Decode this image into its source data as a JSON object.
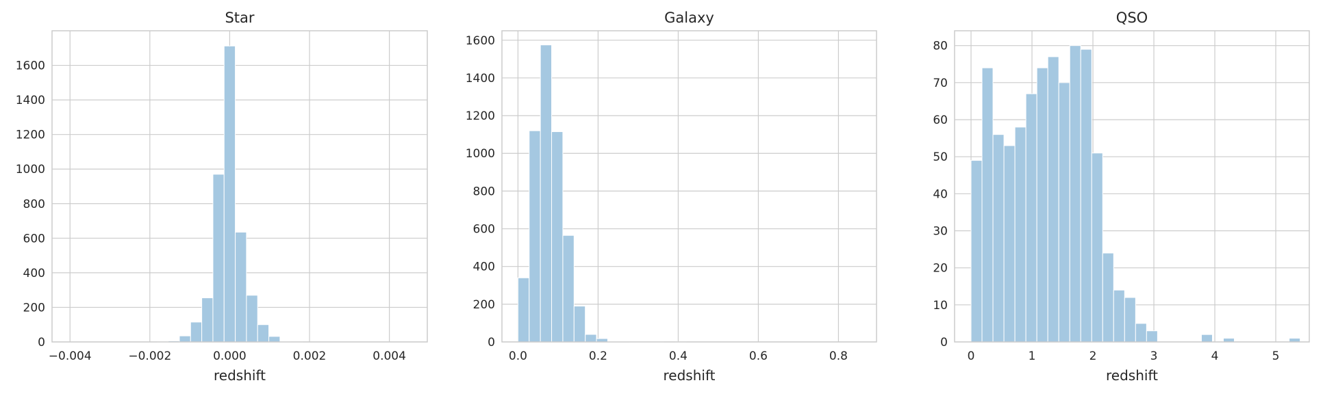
{
  "chart_data": [
    {
      "type": "bar",
      "title": "Star",
      "xlabel": "redshift",
      "ylabel": "",
      "xlim": [
        -0.00445,
        0.00495
      ],
      "ylim": [
        0,
        1800
      ],
      "xticks": [
        -0.004,
        -0.002,
        0.0,
        0.002,
        0.004
      ],
      "xtick_labels": [
        "−0.004",
        "−0.002",
        "0.000",
        "0.002",
        "0.004"
      ],
      "yticks": [
        0,
        200,
        400,
        600,
        800,
        1000,
        1200,
        1400,
        1600
      ],
      "ytick_labels": [
        "0",
        "200",
        "400",
        "600",
        "800",
        "1000",
        "1200",
        "1400",
        "1600"
      ],
      "grid": true,
      "bins": [
        {
          "x0": -0.00406,
          "x1": -0.00378,
          "count": 0
        },
        {
          "x0": -0.00378,
          "x1": -0.0035,
          "count": 0
        },
        {
          "x0": -0.0035,
          "x1": -0.00322,
          "count": 0
        },
        {
          "x0": -0.00322,
          "x1": -0.00294,
          "count": 0
        },
        {
          "x0": -0.00294,
          "x1": -0.00266,
          "count": 0
        },
        {
          "x0": -0.00266,
          "x1": -0.00238,
          "count": 0
        },
        {
          "x0": -0.00238,
          "x1": -0.0021,
          "count": 0
        },
        {
          "x0": -0.0021,
          "x1": -0.00182,
          "count": 0
        },
        {
          "x0": -0.00182,
          "x1": -0.00154,
          "count": 1
        },
        {
          "x0": -0.00154,
          "x1": -0.00126,
          "count": 6
        },
        {
          "x0": -0.00126,
          "x1": -0.00098,
          "count": 35
        },
        {
          "x0": -0.00098,
          "x1": -0.0007,
          "count": 115
        },
        {
          "x0": -0.0007,
          "x1": -0.00042,
          "count": 255
        },
        {
          "x0": -0.00042,
          "x1": -0.00014,
          "count": 970
        },
        {
          "x0": -0.00014,
          "x1": 0.00014,
          "count": 1712
        },
        {
          "x0": 0.00014,
          "x1": 0.00042,
          "count": 635
        },
        {
          "x0": 0.00042,
          "x1": 0.0007,
          "count": 270
        },
        {
          "x0": 0.0007,
          "x1": 0.00098,
          "count": 100
        },
        {
          "x0": 0.00098,
          "x1": 0.00126,
          "count": 32
        },
        {
          "x0": 0.00126,
          "x1": 0.00154,
          "count": 2
        },
        {
          "x0": 0.00154,
          "x1": 0.00182,
          "count": 1
        },
        {
          "x0": 0.00182,
          "x1": 0.0021,
          "count": 0
        },
        {
          "x0": 0.0021,
          "x1": 0.00238,
          "count": 0
        },
        {
          "x0": 0.00238,
          "x1": 0.00266,
          "count": 0
        },
        {
          "x0": 0.00266,
          "x1": 0.00294,
          "count": 0
        },
        {
          "x0": 0.00294,
          "x1": 0.00322,
          "count": 0
        },
        {
          "x0": 0.00322,
          "x1": 0.0035,
          "count": 0
        },
        {
          "x0": 0.0035,
          "x1": 0.00378,
          "count": 0
        },
        {
          "x0": 0.00378,
          "x1": 0.00406,
          "count": 0
        },
        {
          "x0": 0.00406,
          "x1": 0.00434,
          "count": 0
        },
        {
          "x0": 0.00434,
          "x1": 0.00462,
          "count": 0
        }
      ]
    },
    {
      "type": "bar",
      "title": "Galaxy",
      "xlabel": "redshift",
      "ylabel": "",
      "xlim": [
        -0.04,
        0.895
      ],
      "ylim": [
        0,
        1650
      ],
      "xticks": [
        0.0,
        0.2,
        0.4,
        0.6,
        0.8
      ],
      "xtick_labels": [
        "0.0",
        "0.2",
        "0.4",
        "0.6",
        "0.8"
      ],
      "yticks": [
        0,
        200,
        400,
        600,
        800,
        1000,
        1200,
        1400,
        1600
      ],
      "ytick_labels": [
        "0",
        "200",
        "400",
        "600",
        "800",
        "1000",
        "1200",
        "1400",
        "1600"
      ],
      "grid": true,
      "bins": [
        {
          "x0": 0.0,
          "x1": 0.028,
          "count": 340
        },
        {
          "x0": 0.028,
          "x1": 0.056,
          "count": 1120
        },
        {
          "x0": 0.056,
          "x1": 0.084,
          "count": 1575
        },
        {
          "x0": 0.084,
          "x1": 0.112,
          "count": 1115
        },
        {
          "x0": 0.112,
          "x1": 0.14,
          "count": 565
        },
        {
          "x0": 0.14,
          "x1": 0.168,
          "count": 190
        },
        {
          "x0": 0.168,
          "x1": 0.196,
          "count": 40
        },
        {
          "x0": 0.196,
          "x1": 0.224,
          "count": 18
        },
        {
          "x0": 0.224,
          "x1": 0.252,
          "count": 3
        },
        {
          "x0": 0.252,
          "x1": 0.28,
          "count": 2
        },
        {
          "x0": 0.28,
          "x1": 0.308,
          "count": 1
        },
        {
          "x0": 0.308,
          "x1": 0.336,
          "count": 1
        },
        {
          "x0": 0.336,
          "x1": 0.364,
          "count": 1
        },
        {
          "x0": 0.364,
          "x1": 0.392,
          "count": 0
        },
        {
          "x0": 0.392,
          "x1": 0.42,
          "count": 1
        },
        {
          "x0": 0.42,
          "x1": 0.448,
          "count": 0
        },
        {
          "x0": 0.448,
          "x1": 0.476,
          "count": 0
        },
        {
          "x0": 0.476,
          "x1": 0.504,
          "count": 0
        },
        {
          "x0": 0.504,
          "x1": 0.532,
          "count": 0
        },
        {
          "x0": 0.532,
          "x1": 0.56,
          "count": 0
        },
        {
          "x0": 0.56,
          "x1": 0.588,
          "count": 0
        },
        {
          "x0": 0.588,
          "x1": 0.616,
          "count": 0
        },
        {
          "x0": 0.616,
          "x1": 0.644,
          "count": 0
        },
        {
          "x0": 0.644,
          "x1": 0.672,
          "count": 0
        },
        {
          "x0": 0.672,
          "x1": 0.7,
          "count": 0
        },
        {
          "x0": 0.7,
          "x1": 0.728,
          "count": 0
        },
        {
          "x0": 0.728,
          "x1": 0.756,
          "count": 0
        },
        {
          "x0": 0.756,
          "x1": 0.784,
          "count": 0
        },
        {
          "x0": 0.784,
          "x1": 0.812,
          "count": 0
        },
        {
          "x0": 0.812,
          "x1": 0.84,
          "count": 0
        }
      ]
    },
    {
      "type": "bar",
      "title": "QSO",
      "xlabel": "redshift",
      "ylabel": "",
      "xlim": [
        -0.27,
        5.55
      ],
      "ylim": [
        0,
        84
      ],
      "xticks": [
        0,
        1,
        2,
        3,
        4,
        5
      ],
      "xtick_labels": [
        "0",
        "1",
        "2",
        "3",
        "4",
        "5"
      ],
      "yticks": [
        0,
        10,
        20,
        30,
        40,
        50,
        60,
        70,
        80
      ],
      "ytick_labels": [
        "0",
        "10",
        "20",
        "30",
        "40",
        "50",
        "60",
        "70",
        "80"
      ],
      "grid": true,
      "bins": [
        {
          "x0": 0.0,
          "x1": 0.18,
          "count": 49
        },
        {
          "x0": 0.18,
          "x1": 0.36,
          "count": 74
        },
        {
          "x0": 0.36,
          "x1": 0.54,
          "count": 56
        },
        {
          "x0": 0.54,
          "x1": 0.72,
          "count": 53
        },
        {
          "x0": 0.72,
          "x1": 0.9,
          "count": 58
        },
        {
          "x0": 0.9,
          "x1": 1.08,
          "count": 67
        },
        {
          "x0": 1.08,
          "x1": 1.26,
          "count": 74
        },
        {
          "x0": 1.26,
          "x1": 1.44,
          "count": 77
        },
        {
          "x0": 1.44,
          "x1": 1.62,
          "count": 70
        },
        {
          "x0": 1.62,
          "x1": 1.8,
          "count": 80
        },
        {
          "x0": 1.8,
          "x1": 1.98,
          "count": 79
        },
        {
          "x0": 1.98,
          "x1": 2.16,
          "count": 51
        },
        {
          "x0": 2.16,
          "x1": 2.34,
          "count": 24
        },
        {
          "x0": 2.34,
          "x1": 2.52,
          "count": 14
        },
        {
          "x0": 2.52,
          "x1": 2.7,
          "count": 12
        },
        {
          "x0": 2.7,
          "x1": 2.88,
          "count": 5
        },
        {
          "x0": 2.88,
          "x1": 3.06,
          "count": 3
        },
        {
          "x0": 3.06,
          "x1": 3.24,
          "count": 0
        },
        {
          "x0": 3.24,
          "x1": 3.42,
          "count": 0
        },
        {
          "x0": 3.42,
          "x1": 3.6,
          "count": 0
        },
        {
          "x0": 3.6,
          "x1": 3.78,
          "count": 0
        },
        {
          "x0": 3.78,
          "x1": 3.96,
          "count": 2
        },
        {
          "x0": 3.96,
          "x1": 4.14,
          "count": 0
        },
        {
          "x0": 4.14,
          "x1": 4.32,
          "count": 1
        },
        {
          "x0": 4.32,
          "x1": 4.5,
          "count": 0
        },
        {
          "x0": 4.5,
          "x1": 4.68,
          "count": 0
        },
        {
          "x0": 4.68,
          "x1": 4.86,
          "count": 0
        },
        {
          "x0": 4.86,
          "x1": 5.04,
          "count": 0
        },
        {
          "x0": 5.04,
          "x1": 5.22,
          "count": 0
        },
        {
          "x0": 5.22,
          "x1": 5.4,
          "count": 1
        }
      ]
    }
  ],
  "colors": {
    "bar_fill": "#a5c8e1",
    "bar_edge": "#ffffff",
    "grid": "#cccccc",
    "spine": "#cccccc",
    "text": "#262626",
    "background": "#ffffff"
  }
}
